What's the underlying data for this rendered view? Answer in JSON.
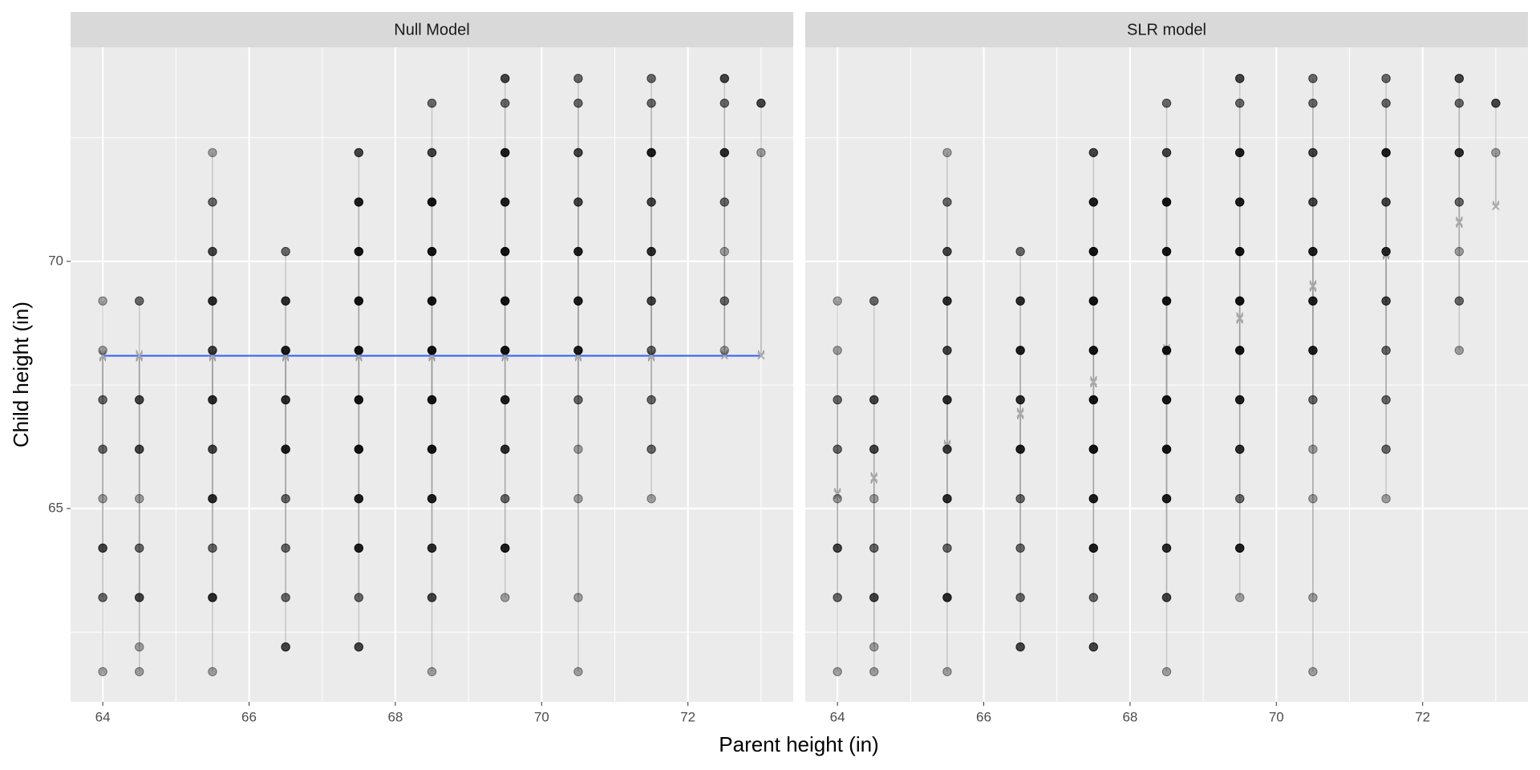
{
  "xlabel": "Parent height (in)",
  "ylabel": "Child height (in)",
  "chart_data": [
    {
      "type": "scatter",
      "title": "Null Model",
      "xlim": [
        63.56,
        73.44
      ],
      "ylim": [
        61.09,
        74.33
      ],
      "xticks": [
        64,
        66,
        68,
        70,
        72
      ],
      "xminor": [
        65,
        67,
        69,
        71,
        73
      ],
      "yticks": [
        65,
        70
      ],
      "yminor": [
        62.5,
        67.5,
        72.5
      ],
      "point_color": "#000000",
      "residual_color": "#999999",
      "fit_line_color": "#3366ff",
      "columns": [
        {
          "x": 64,
          "fitted": 68.09,
          "y": [
            69.2,
            68.2,
            67.2,
            66.2,
            65.2,
            64.2,
            63.2,
            61.7
          ],
          "counts": [
            1,
            1,
            2,
            2,
            1,
            3,
            2,
            1
          ]
        },
        {
          "x": 64.5,
          "fitted": 68.09,
          "y": [
            69.2,
            67.2,
            66.2,
            65.2,
            64.2,
            63.2,
            62.2,
            61.7
          ],
          "counts": [
            2,
            3,
            3,
            1,
            2,
            3,
            1,
            1
          ]
        },
        {
          "x": 65.5,
          "fitted": 68.09,
          "y": [
            72.2,
            71.2,
            70.2,
            69.2,
            68.2,
            67.2,
            66.2,
            65.2,
            64.2,
            63.2,
            61.7
          ],
          "counts": [
            1,
            2,
            3,
            4,
            3,
            4,
            3,
            4,
            2,
            4,
            1
          ]
        },
        {
          "x": 66.5,
          "fitted": 68.09,
          "y": [
            70.2,
            69.2,
            68.2,
            67.2,
            66.2,
            65.2,
            64.2,
            63.2,
            62.2
          ],
          "counts": [
            2,
            4,
            5,
            4,
            5,
            2,
            2,
            2,
            3
          ]
        },
        {
          "x": 67.5,
          "fitted": 68.09,
          "y": [
            72.2,
            71.2,
            70.2,
            69.2,
            68.2,
            67.2,
            66.2,
            65.2,
            64.2,
            63.2,
            62.2
          ],
          "counts": [
            3,
            5,
            6,
            6,
            6,
            6,
            6,
            5,
            5,
            2,
            3
          ]
        },
        {
          "x": 68.5,
          "fitted": 68.09,
          "y": [
            73.2,
            72.2,
            71.2,
            70.2,
            69.2,
            68.2,
            67.2,
            66.2,
            65.2,
            64.2,
            63.2,
            61.7
          ],
          "counts": [
            2,
            3,
            6,
            6,
            6,
            6,
            6,
            6,
            5,
            4,
            3,
            1
          ]
        },
        {
          "x": 69.5,
          "fitted": 68.09,
          "y": [
            73.7,
            73.2,
            72.2,
            71.2,
            70.2,
            69.2,
            68.2,
            67.2,
            66.2,
            65.2,
            64.2,
            63.2
          ],
          "counts": [
            3,
            2,
            5,
            5,
            6,
            6,
            6,
            5,
            4,
            2,
            5,
            1
          ]
        },
        {
          "x": 70.5,
          "fitted": 68.09,
          "y": [
            73.7,
            73.2,
            72.2,
            71.2,
            70.2,
            69.2,
            68.2,
            67.2,
            66.2,
            65.2,
            63.2,
            61.7
          ],
          "counts": [
            2,
            2,
            3,
            3,
            5,
            5,
            5,
            2,
            1,
            1,
            1,
            1
          ]
        },
        {
          "x": 71.5,
          "fitted": 68.09,
          "y": [
            73.7,
            73.2,
            72.2,
            71.2,
            70.2,
            69.2,
            68.2,
            67.2,
            66.2,
            65.2
          ],
          "counts": [
            2,
            2,
            5,
            3,
            4,
            3,
            2,
            2,
            2,
            1
          ]
        },
        {
          "x": 72.5,
          "fitted": 68.09,
          "y": [
            73.7,
            73.2,
            72.2,
            71.2,
            70.2,
            69.2,
            68.2
          ],
          "counts": [
            3,
            2,
            4,
            2,
            1,
            2,
            1
          ]
        },
        {
          "x": 73,
          "fitted": 68.09,
          "y": [
            73.2,
            72.2
          ],
          "counts": [
            3,
            1
          ]
        }
      ]
    },
    {
      "type": "scatter",
      "title": "SLR model",
      "xlim": [
        63.56,
        73.44
      ],
      "ylim": [
        61.09,
        74.33
      ],
      "xticks": [
        64,
        66,
        68,
        70,
        72
      ],
      "xminor": [
        65,
        67,
        69,
        71,
        73
      ],
      "yticks": [
        65,
        70
      ],
      "yminor": [
        62.5,
        67.5,
        72.5
      ],
      "point_color": "#000000",
      "residual_color": "#999999",
      "columns": [
        {
          "x": 64,
          "fitted": 65.3,
          "y": [
            69.2,
            68.2,
            67.2,
            66.2,
            65.2,
            64.2,
            63.2,
            61.7
          ],
          "counts": [
            1,
            1,
            2,
            2,
            1,
            3,
            2,
            1
          ]
        },
        {
          "x": 64.5,
          "fitted": 65.62,
          "y": [
            69.2,
            67.2,
            66.2,
            65.2,
            64.2,
            63.2,
            62.2,
            61.7
          ],
          "counts": [
            2,
            3,
            3,
            1,
            2,
            3,
            1,
            1
          ]
        },
        {
          "x": 65.5,
          "fitted": 66.27,
          "y": [
            72.2,
            71.2,
            70.2,
            69.2,
            68.2,
            67.2,
            66.2,
            65.2,
            64.2,
            63.2,
            61.7
          ],
          "counts": [
            1,
            2,
            3,
            4,
            3,
            4,
            3,
            4,
            2,
            4,
            1
          ]
        },
        {
          "x": 66.5,
          "fitted": 66.92,
          "y": [
            70.2,
            69.2,
            68.2,
            67.2,
            66.2,
            65.2,
            64.2,
            63.2,
            62.2
          ],
          "counts": [
            2,
            4,
            5,
            4,
            5,
            2,
            2,
            2,
            3
          ]
        },
        {
          "x": 67.5,
          "fitted": 67.56,
          "y": [
            72.2,
            71.2,
            70.2,
            69.2,
            68.2,
            67.2,
            66.2,
            65.2,
            64.2,
            63.2,
            62.2
          ],
          "counts": [
            3,
            5,
            6,
            6,
            6,
            6,
            6,
            5,
            5,
            2,
            3
          ]
        },
        {
          "x": 68.5,
          "fitted": 68.21,
          "y": [
            73.2,
            72.2,
            71.2,
            70.2,
            69.2,
            68.2,
            67.2,
            66.2,
            65.2,
            64.2,
            63.2,
            61.7
          ],
          "counts": [
            2,
            3,
            6,
            6,
            6,
            6,
            6,
            6,
            5,
            4,
            3,
            1
          ]
        },
        {
          "x": 69.5,
          "fitted": 68.85,
          "y": [
            73.7,
            73.2,
            72.2,
            71.2,
            70.2,
            69.2,
            68.2,
            67.2,
            66.2,
            65.2,
            64.2,
            63.2
          ],
          "counts": [
            3,
            2,
            5,
            5,
            6,
            6,
            6,
            5,
            4,
            2,
            5,
            1
          ]
        },
        {
          "x": 70.5,
          "fitted": 69.5,
          "y": [
            73.7,
            73.2,
            72.2,
            71.2,
            70.2,
            69.2,
            68.2,
            67.2,
            66.2,
            65.2,
            63.2,
            61.7
          ],
          "counts": [
            2,
            2,
            3,
            3,
            5,
            5,
            5,
            2,
            1,
            1,
            1,
            1
          ]
        },
        {
          "x": 71.5,
          "fitted": 70.15,
          "y": [
            73.7,
            73.2,
            72.2,
            71.2,
            70.2,
            69.2,
            68.2,
            67.2,
            66.2,
            65.2
          ],
          "counts": [
            2,
            2,
            5,
            3,
            4,
            3,
            2,
            2,
            2,
            1
          ]
        },
        {
          "x": 72.5,
          "fitted": 70.79,
          "y": [
            73.7,
            73.2,
            72.2,
            71.2,
            70.2,
            69.2,
            68.2
          ],
          "counts": [
            3,
            2,
            4,
            2,
            1,
            2,
            1
          ]
        },
        {
          "x": 73,
          "fitted": 71.11,
          "y": [
            73.2,
            72.2
          ],
          "counts": [
            3,
            1
          ]
        }
      ]
    }
  ]
}
